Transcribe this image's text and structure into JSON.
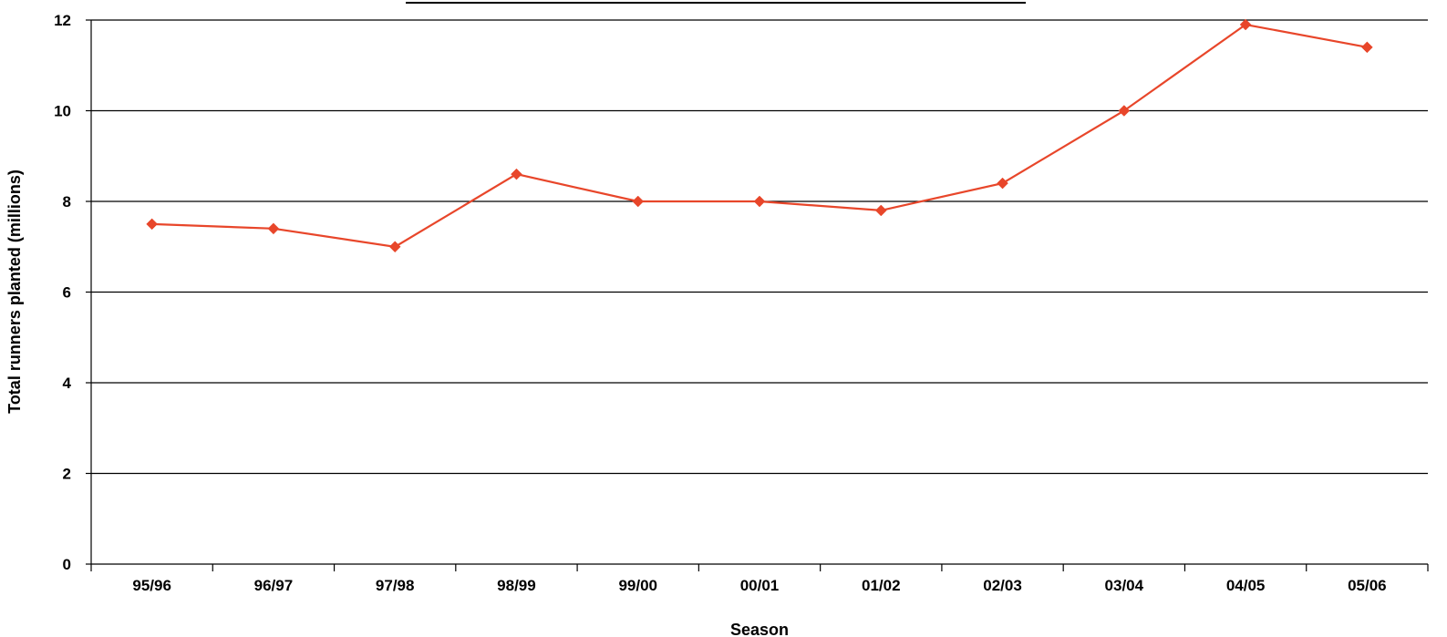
{
  "chart_data": {
    "type": "line",
    "title": "",
    "xlabel": "Season",
    "ylabel": "Total runners planted (millions)",
    "categories": [
      "95/96",
      "96/97",
      "97/98",
      "98/99",
      "99/00",
      "00/01",
      "01/02",
      "02/03",
      "03/04",
      "04/05",
      "05/06"
    ],
    "series": [
      {
        "values": [
          7.5,
          7.4,
          7.0,
          8.6,
          8.0,
          8.0,
          7.8,
          8.4,
          10.0,
          11.9,
          11.4
        ],
        "color": "#e8462a",
        "marker": "diamond"
      }
    ],
    "ylim": [
      0,
      12
    ],
    "yticks": [
      0,
      2,
      4,
      6,
      8,
      10,
      12
    ],
    "grid": true,
    "legend": "none",
    "colors": {
      "gridline": "#000000",
      "axis": "#000000",
      "series": "#e8462a"
    }
  }
}
